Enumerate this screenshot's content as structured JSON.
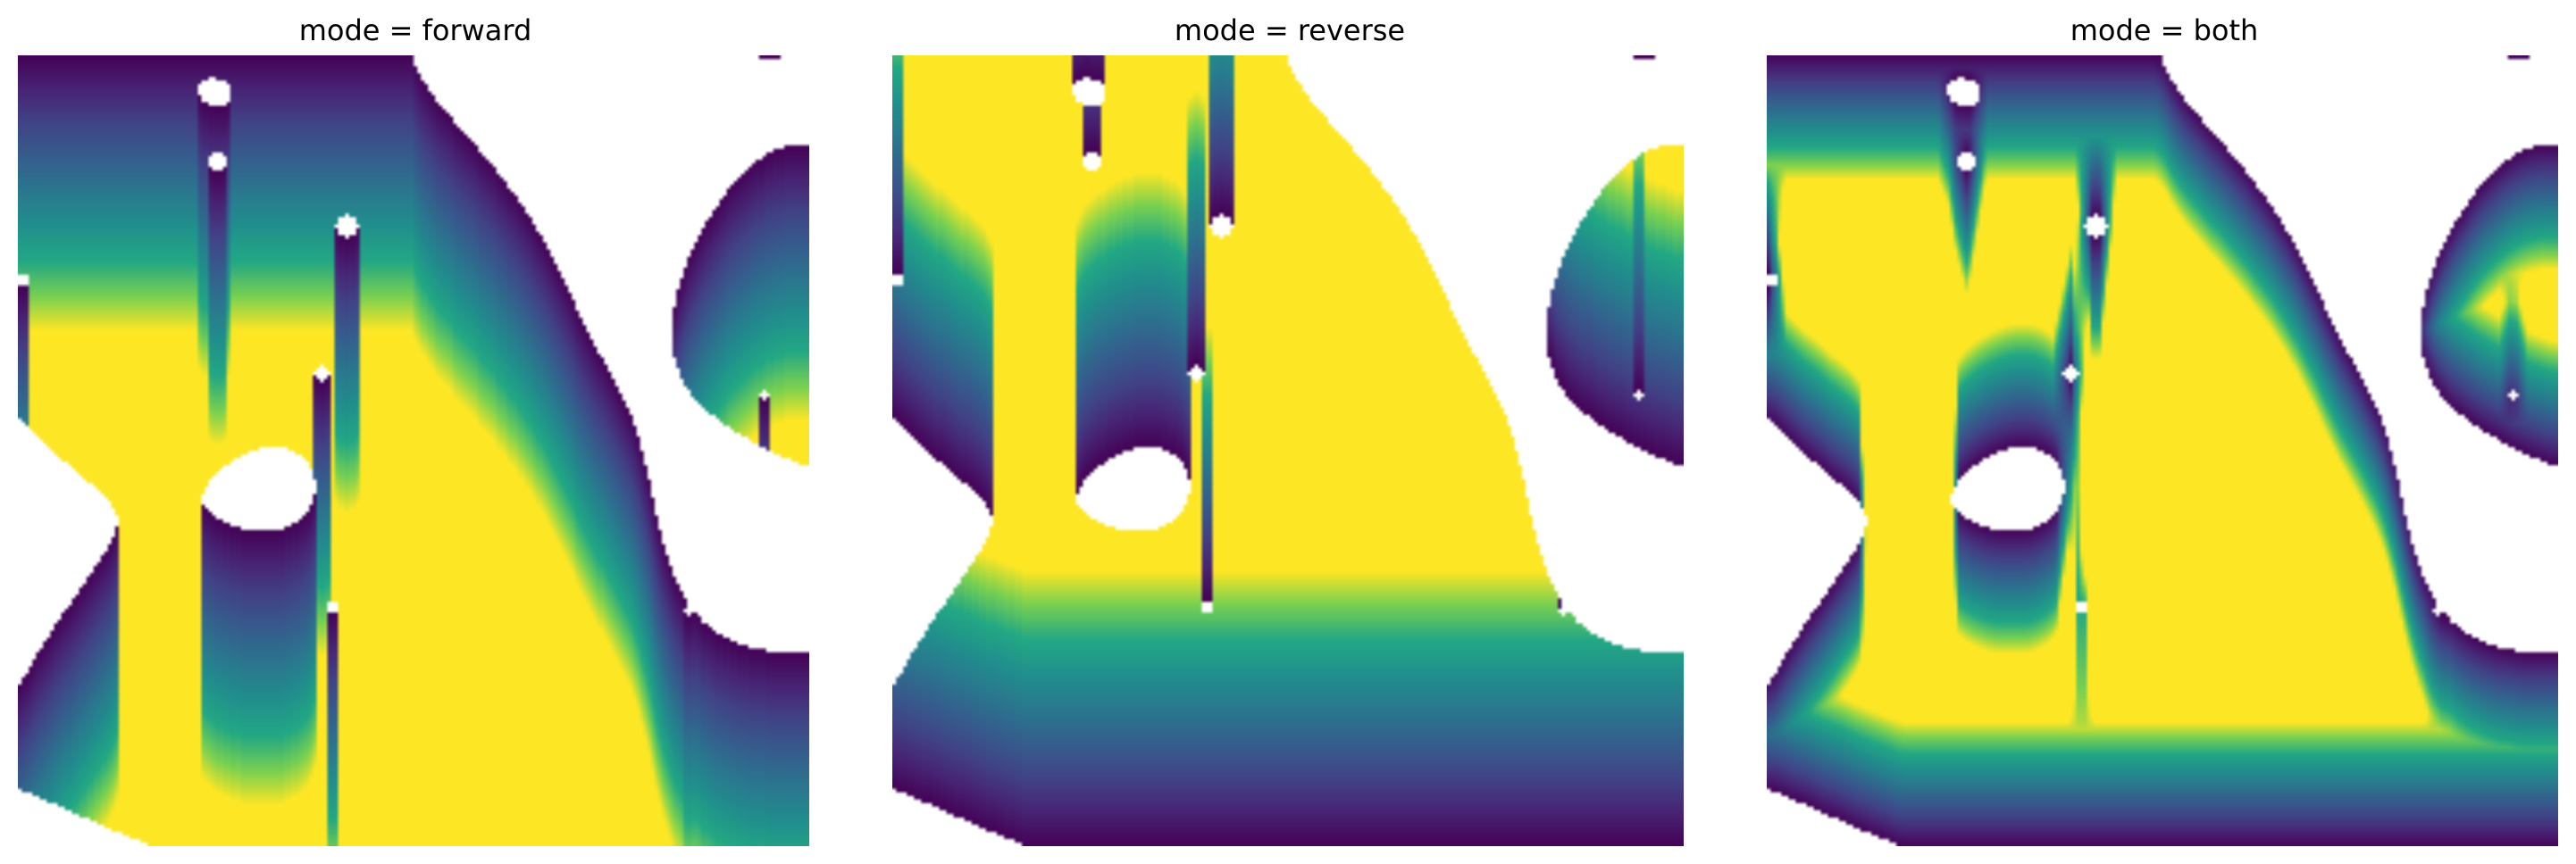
{
  "figure": {
    "panels": [
      {
        "title": "mode = forward",
        "mode": "forward"
      },
      {
        "title": "mode = reverse",
        "mode": "reverse"
      },
      {
        "title": "mode = both",
        "mode": "both"
      }
    ],
    "colormap": "viridis",
    "colors": {
      "background": "#ffffff",
      "low": "#440154",
      "mid": "#21918c",
      "high": "#fde725"
    }
  }
}
